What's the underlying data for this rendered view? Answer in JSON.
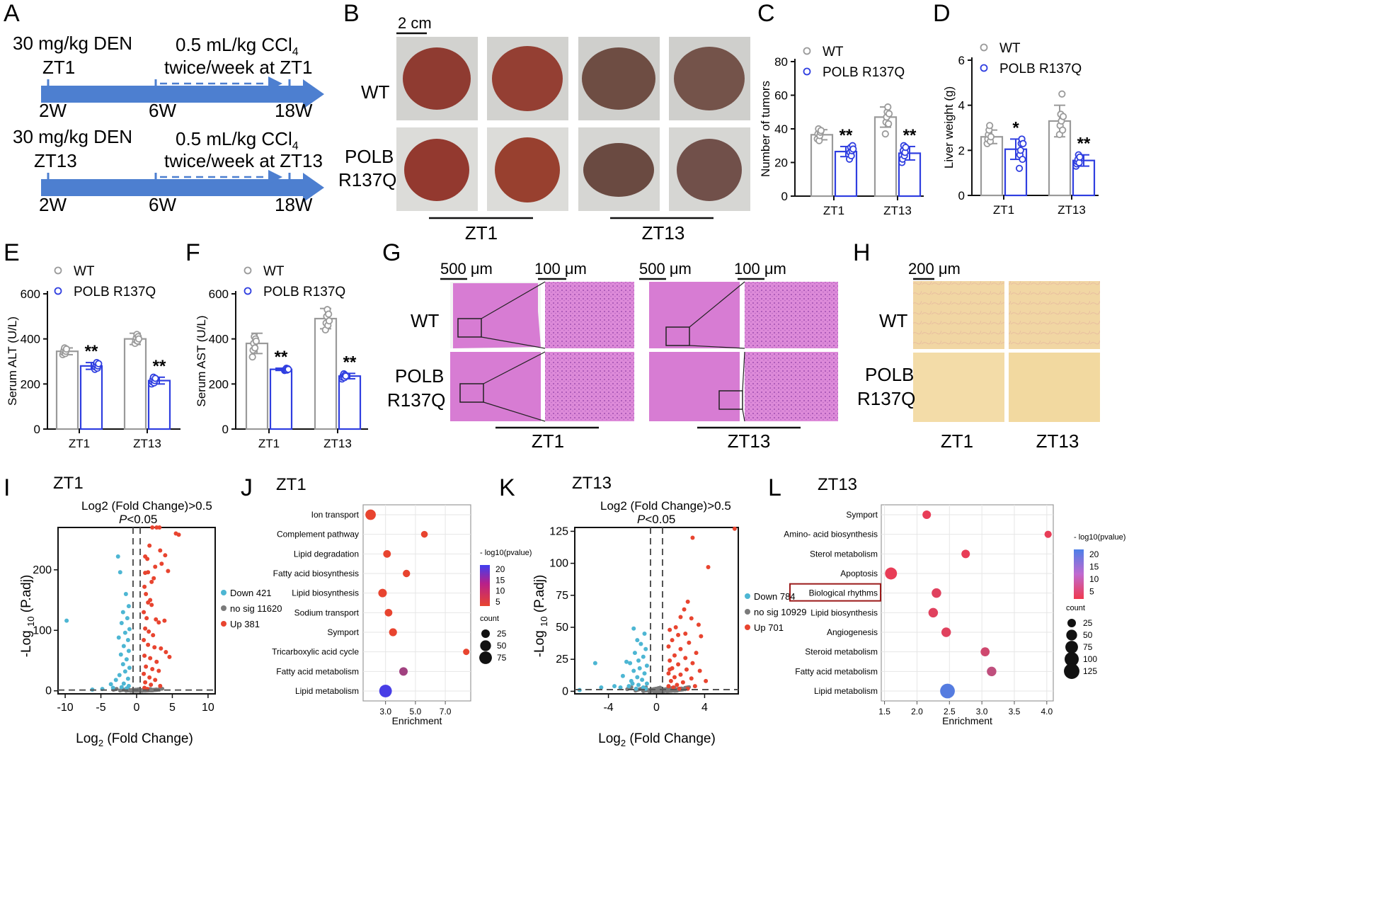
{
  "colors": {
    "wt": "#9a9a9a",
    "mut": "#2f3ee0",
    "timeline": "#4d7fd0",
    "down": "#4db6d3",
    "nosig": "#7a7a7a",
    "up": "#e8442f",
    "liver_dark": "#8f3b31",
    "liver_brown": "#6e4d43",
    "he_stain": "#d77cd3",
    "sirius": "#f1d6a3",
    "gradLow": "#e8442f",
    "gradHigh": "#3f4df0",
    "gradHighL": "#4d7fe8"
  },
  "panel_letters": [
    "A",
    "B",
    "C",
    "D",
    "E",
    "F",
    "G",
    "H",
    "I",
    "J",
    "K",
    "L"
  ],
  "panelA": {
    "rows": [
      {
        "dose": "30 mg/kg DEN",
        "zt": "ZT1",
        "ccl4": "0.5 mL/kg CCl",
        "ccl4_sub": "4",
        "schedule": "twice/week at ZT1",
        "weeks": [
          "2W",
          "6W",
          "18W"
        ]
      },
      {
        "dose": "30 mg/kg DEN",
        "zt": "ZT13",
        "ccl4": "0.5 mL/kg CCl",
        "ccl4_sub": "4",
        "schedule": "twice/week at ZT13",
        "weeks": [
          "2W",
          "6W",
          "18W"
        ]
      }
    ]
  },
  "panelB": {
    "scale": "2 cm",
    "row_wt": "WT",
    "row_mut1": "POLB",
    "row_mut2": "R137Q",
    "groups": [
      "ZT1",
      "ZT13"
    ]
  },
  "legend": {
    "wt": "WT",
    "mut": "POLB R137Q"
  },
  "panelG": {
    "scale_low": "500 μm",
    "scale_high": "100 μm",
    "row_wt": "WT",
    "row_mut1": "POLB",
    "row_mut2": "R137Q",
    "groups": [
      "ZT1",
      "ZT13"
    ]
  },
  "panelH": {
    "scale": "200 μm",
    "row_wt": "WT",
    "row_mut1": "POLB",
    "row_mut2": "R137Q",
    "groups": [
      "ZT1",
      "ZT13"
    ]
  },
  "chart_data": [
    {
      "id": "C",
      "type": "bar",
      "ylabel": "Number of tumors",
      "ylim": [
        0,
        80
      ],
      "yticks": [
        0,
        20,
        40,
        60,
        80
      ],
      "categories": [
        "ZT1",
        "ZT13"
      ],
      "series": [
        {
          "name": "WT",
          "values": [
            36.5,
            47
          ],
          "sem": [
            3,
            6
          ],
          "points": [
            [
              34,
              37,
              40,
              33,
              36,
              38,
              39
            ],
            [
              37,
              44,
              47,
              50,
              53,
              43,
              49
            ]
          ]
        },
        {
          "name": "POLB R137Q",
          "values": [
            26.5,
            25.5
          ],
          "sem": [
            3,
            4
          ],
          "points": [
            [
              22,
              26,
              29,
              24,
              27,
              30,
              28
            ],
            [
              20,
              22,
              27,
              30,
              24,
              26,
              29
            ]
          ]
        }
      ],
      "sig": [
        "**",
        "**"
      ]
    },
    {
      "id": "D",
      "type": "bar",
      "ylabel": "Liver weight (g)",
      "ylim": [
        0,
        6
      ],
      "yticks": [
        0,
        2,
        4,
        6
      ],
      "categories": [
        "ZT1",
        "ZT13"
      ],
      "series": [
        {
          "name": "WT",
          "values": [
            2.6,
            3.3
          ],
          "sem": [
            0.3,
            0.7
          ],
          "points": [
            [
              2.3,
              2.5,
              2.7,
              2.9,
              3.1,
              2.4,
              2.6
            ],
            [
              2.7,
              3.1,
              3.6,
              3.3,
              4.5,
              2.9,
              3.5
            ]
          ]
        },
        {
          "name": "POLB R137Q",
          "values": [
            2.05,
            1.55
          ],
          "sem": [
            0.45,
            0.25
          ],
          "points": [
            [
              1.2,
              1.8,
              2.0,
              2.3,
              2.5,
              1.6,
              2.3
            ],
            [
              1.3,
              1.4,
              1.5,
              1.6,
              1.8,
              1.45,
              1.7
            ]
          ]
        }
      ],
      "sig": [
        "*",
        "**"
      ]
    },
    {
      "id": "E",
      "type": "bar",
      "ylabel": "Serum ALT (U/L)",
      "ylim": [
        0,
        600
      ],
      "yticks": [
        0,
        200,
        400,
        600
      ],
      "categories": [
        "ZT1",
        "ZT13"
      ],
      "series": [
        {
          "name": "WT",
          "values": [
            345,
            400
          ],
          "sem": [
            15,
            25
          ],
          "points": [
            [
              330,
              340,
              350,
              360,
              335,
              345,
              355
            ],
            [
              380,
              395,
              405,
              420,
              390,
              410,
              400
            ]
          ]
        },
        {
          "name": "POLB R137Q",
          "values": [
            280,
            215
          ],
          "sem": [
            15,
            15
          ],
          "points": [
            [
              265,
              275,
              285,
              295,
              270,
              280,
              290
            ],
            [
              200,
              210,
              220,
              230,
              205,
              215,
              225
            ]
          ]
        }
      ],
      "sig": [
        "**",
        "**"
      ]
    },
    {
      "id": "F",
      "type": "bar",
      "ylabel": "Serum AST (U/L)",
      "ylim": [
        0,
        600
      ],
      "yticks": [
        0,
        200,
        400,
        600
      ],
      "categories": [
        "ZT1",
        "ZT13"
      ],
      "series": [
        {
          "name": "WT",
          "values": [
            380,
            490
          ],
          "sem": [
            45,
            45
          ],
          "points": [
            [
              320,
              350,
              380,
              410,
              360,
              400,
              390
            ],
            [
              440,
              470,
              500,
              530,
              460,
              510,
              480
            ]
          ]
        },
        {
          "name": "POLB R137Q",
          "values": [
            265,
            235
          ],
          "sem": [
            5,
            12
          ],
          "points": [
            [
              260,
              263,
              266,
              270,
              262,
              268,
              265
            ],
            [
              222,
              230,
              238,
              245,
              228,
              240,
              235
            ]
          ]
        }
      ],
      "sig": [
        "**",
        "**"
      ]
    },
    {
      "id": "I",
      "type": "scatter",
      "title": "ZT1",
      "subtitle1": "Log2 (Fold Change)>0.5",
      "subtitle2_italic": "P",
      "subtitle2_rest": "<0.05",
      "xlabel_pre": "Log",
      "xlabel_sub": "2",
      "xlabel_post": " (Fold Change)",
      "ylabel_pre": "-Log ",
      "ylabel_sub": "10",
      "ylabel_post": " (P.adj)",
      "xlim": [
        -11,
        11
      ],
      "ylim": [
        -5,
        270
      ],
      "xticks": [
        -10,
        -5,
        0,
        5,
        10
      ],
      "yticks": [
        0,
        100,
        200
      ],
      "thresholds": {
        "x": [
          -0.5,
          0.5
        ],
        "y": 1.3
      },
      "legend": [
        {
          "label": "Down 421"
        },
        {
          "label": "no sig 11620"
        },
        {
          "label": "Up 381"
        }
      ],
      "up": [
        [
          2.2,
          270
        ],
        [
          2.8,
          270
        ],
        [
          3.2,
          270
        ],
        [
          5.5,
          260
        ],
        [
          5.9,
          258
        ],
        [
          1.8,
          240
        ],
        [
          3.3,
          232
        ],
        [
          4.0,
          224
        ],
        [
          1.2,
          222
        ],
        [
          1.5,
          218
        ],
        [
          2.6,
          205
        ],
        [
          3.5,
          210
        ],
        [
          1.6,
          196
        ],
        [
          1.2,
          195
        ],
        [
          2.4,
          186
        ],
        [
          2.1,
          180
        ],
        [
          4.4,
          198
        ],
        [
          1.1,
          172
        ],
        [
          1.3,
          160
        ],
        [
          1.6,
          146
        ],
        [
          1.9,
          150
        ],
        [
          2.1,
          142
        ],
        [
          1.0,
          130
        ],
        [
          1.4,
          120
        ],
        [
          2.7,
          118
        ],
        [
          3.1,
          113
        ],
        [
          3.9,
          116
        ],
        [
          1.2,
          103
        ],
        [
          1.7,
          98
        ],
        [
          2.3,
          92
        ],
        [
          1.0,
          84
        ],
        [
          1.6,
          76
        ],
        [
          2.5,
          72
        ],
        [
          3.4,
          70
        ],
        [
          4.1,
          64
        ],
        [
          1.1,
          58
        ],
        [
          1.9,
          54
        ],
        [
          2.8,
          48
        ],
        [
          1.3,
          40
        ],
        [
          2.2,
          36
        ],
        [
          3.1,
          33
        ],
        [
          1.0,
          28
        ],
        [
          1.8,
          22
        ],
        [
          2.6,
          18
        ],
        [
          1.2,
          14
        ],
        [
          2.0,
          10
        ],
        [
          3.3,
          8
        ],
        [
          1.1,
          5
        ],
        [
          1.5,
          3
        ],
        [
          4.6,
          56
        ]
      ],
      "down": [
        [
          -2.6,
          222
        ],
        [
          -2.3,
          196
        ],
        [
          -9.8,
          116
        ],
        [
          -1.5,
          160
        ],
        [
          -1.1,
          140
        ],
        [
          -1.9,
          130
        ],
        [
          -1.3,
          120
        ],
        [
          -2.1,
          112
        ],
        [
          -1.0,
          102
        ],
        [
          -1.6,
          96
        ],
        [
          -2.5,
          88
        ],
        [
          -1.2,
          84
        ],
        [
          -1.8,
          74
        ],
        [
          -1.1,
          66
        ],
        [
          -2.2,
          60
        ],
        [
          -1.4,
          52
        ],
        [
          -1.9,
          44
        ],
        [
          -1.0,
          38
        ],
        [
          -1.6,
          32
        ],
        [
          -2.4,
          26
        ],
        [
          -1.2,
          20
        ],
        [
          -2.9,
          18
        ],
        [
          -1.8,
          12
        ],
        [
          -1.1,
          8
        ],
        [
          -3.3,
          5
        ],
        [
          -4.8,
          3
        ],
        [
          -6.2,
          2
        ],
        [
          -1.4,
          4
        ],
        [
          -2.1,
          6
        ],
        [
          -3.6,
          11
        ]
      ],
      "nosig_spread": [
        -4,
        4
      ]
    },
    {
      "id": "J",
      "type": "scatter",
      "subtype": "bubble",
      "title": "ZT1",
      "xlabel": "Enrichment",
      "xlim": [
        1.5,
        8.7
      ],
      "xticks": [
        3.0,
        5.0,
        7.0
      ],
      "xtick_labels": [
        "3.0",
        "5.0",
        "7.0"
      ],
      "terms": [
        "Ion transport",
        "Complement pathway",
        "Lipid degradation",
        "Fatty acid biosynthesis",
        "Lipid biosynthesis",
        "Sodium transport",
        "Symport",
        "Tricarboxylic acid cycle",
        "Fatty acid metabolism",
        "Lipid metabolism"
      ],
      "enrichment": [
        2.0,
        5.6,
        3.1,
        4.4,
        2.8,
        3.2,
        3.5,
        8.4,
        4.2,
        3.0
      ],
      "count": [
        45,
        12,
        18,
        16,
        25,
        18,
        20,
        10,
        25,
        75
      ],
      "neglog10p": [
        3,
        3,
        3,
        3,
        3,
        3,
        3,
        3,
        11,
        21
      ],
      "color_title": "- log10(pvalue)",
      "color_ticks": [
        5,
        10,
        15,
        20
      ],
      "color_range": [
        3,
        22
      ],
      "count_title": "count",
      "count_ticks": [
        25,
        50,
        75
      ]
    },
    {
      "id": "K",
      "type": "scatter",
      "title": "ZT13",
      "subtitle1": "Log2 (Fold Change)>0.5",
      "subtitle2_italic": "P",
      "subtitle2_rest": "<0.05",
      "xlabel_pre": "Log",
      "xlabel_sub": "2",
      "xlabel_post": " (Fold Change)",
      "ylabel_pre": "-Log ",
      "ylabel_sub": "10",
      "ylabel_post": " (P.adj)",
      "xlim": [
        -6.8,
        6.8
      ],
      "ylim": [
        -2,
        128
      ],
      "xticks": [
        -4,
        0,
        4
      ],
      "yticks": [
        0,
        25,
        50,
        75,
        100,
        125
      ],
      "thresholds": {
        "x": [
          -0.5,
          0.5
        ],
        "y": 1.3
      },
      "legend": [
        {
          "label": "Down 784"
        },
        {
          "label": "no sig 10929"
        },
        {
          "label": "Up 701"
        }
      ],
      "up": [
        [
          6.5,
          127
        ],
        [
          3.0,
          120
        ],
        [
          4.3,
          97
        ],
        [
          2.6,
          70
        ],
        [
          2.3,
          64
        ],
        [
          2.0,
          58
        ],
        [
          2.9,
          57
        ],
        [
          3.5,
          52
        ],
        [
          1.6,
          50
        ],
        [
          1.1,
          48
        ],
        [
          2.4,
          45
        ],
        [
          1.8,
          44
        ],
        [
          3.7,
          43
        ],
        [
          1.3,
          40
        ],
        [
          2.7,
          38
        ],
        [
          1.0,
          35
        ],
        [
          2.0,
          33
        ],
        [
          3.3,
          30
        ],
        [
          1.5,
          28
        ],
        [
          2.4,
          26
        ],
        [
          1.1,
          24
        ],
        [
          3.0,
          22
        ],
        [
          1.8,
          21
        ],
        [
          1.3,
          18
        ],
        [
          2.5,
          17
        ],
        [
          3.6,
          16
        ],
        [
          1.0,
          14
        ],
        [
          2.0,
          13
        ],
        [
          1.5,
          11
        ],
        [
          2.9,
          10
        ],
        [
          1.2,
          8
        ],
        [
          2.2,
          7
        ],
        [
          1.7,
          5
        ],
        [
          1.0,
          4
        ],
        [
          3.2,
          4
        ],
        [
          1.4,
          3
        ],
        [
          2.6,
          2
        ],
        [
          1.9,
          2
        ],
        [
          4.1,
          8
        ],
        [
          1.1,
          17
        ]
      ],
      "down": [
        [
          -1.9,
          49
        ],
        [
          -1.0,
          45
        ],
        [
          -1.6,
          40
        ],
        [
          -1.3,
          37
        ],
        [
          -0.9,
          33
        ],
        [
          -1.8,
          30
        ],
        [
          -1.1,
          27
        ],
        [
          -1.5,
          24
        ],
        [
          -2.2,
          22
        ],
        [
          -0.8,
          20
        ],
        [
          -2.5,
          23
        ],
        [
          -1.4,
          18
        ],
        [
          -1.9,
          16
        ],
        [
          -1.0,
          14
        ],
        [
          -2.8,
          12
        ],
        [
          -1.6,
          11
        ],
        [
          -1.2,
          9
        ],
        [
          -2.1,
          8
        ],
        [
          -0.8,
          6
        ],
        [
          -1.5,
          5
        ],
        [
          -3.5,
          4
        ],
        [
          -2.3,
          4
        ],
        [
          -1.1,
          3
        ],
        [
          -4.6,
          3
        ],
        [
          -5.1,
          22
        ],
        [
          -3.0,
          3
        ],
        [
          -1.7,
          2
        ],
        [
          -6.4,
          1
        ],
        [
          -0.9,
          2
        ],
        [
          -2.0,
          6
        ]
      ],
      "nosig_spread": [
        -3,
        3
      ]
    },
    {
      "id": "L",
      "type": "scatter",
      "subtype": "bubble",
      "title": "ZT13",
      "xlabel": "Enrichment",
      "highlight": "Biological rhythms",
      "xlim": [
        1.45,
        4.1
      ],
      "xticks": [
        1.5,
        2.0,
        2.5,
        3.0,
        3.5,
        4.0
      ],
      "xtick_labels": [
        "1.5",
        "2.0",
        "2.5",
        "3.0",
        "3.5",
        "4.0"
      ],
      "terms": [
        "Symport",
        "Amino- acid biosynthesis",
        "Sterol metabolism",
        "Apoptosis",
        "Biological rhythms",
        "Lipid biosynthesis",
        "Angiogenesis",
        "Steroid metabolism",
        "Fatty acid metabolism",
        "Lipid metabolism"
      ],
      "enrichment": [
        2.15,
        4.02,
        2.75,
        1.6,
        2.3,
        2.25,
        2.45,
        3.05,
        3.15,
        2.47
      ],
      "count": [
        25,
        15,
        25,
        65,
        35,
        35,
        35,
        30,
        35,
        110
      ],
      "neglog10p": [
        3,
        3,
        3,
        3,
        4,
        4,
        4,
        6,
        8,
        21
      ],
      "color_title": "- log10(pvalue)",
      "color_ticks": [
        5,
        10,
        15,
        20
      ],
      "color_range": [
        2,
        22
      ],
      "count_title": "count",
      "count_ticks": [
        25,
        50,
        75,
        100,
        125
      ]
    }
  ]
}
